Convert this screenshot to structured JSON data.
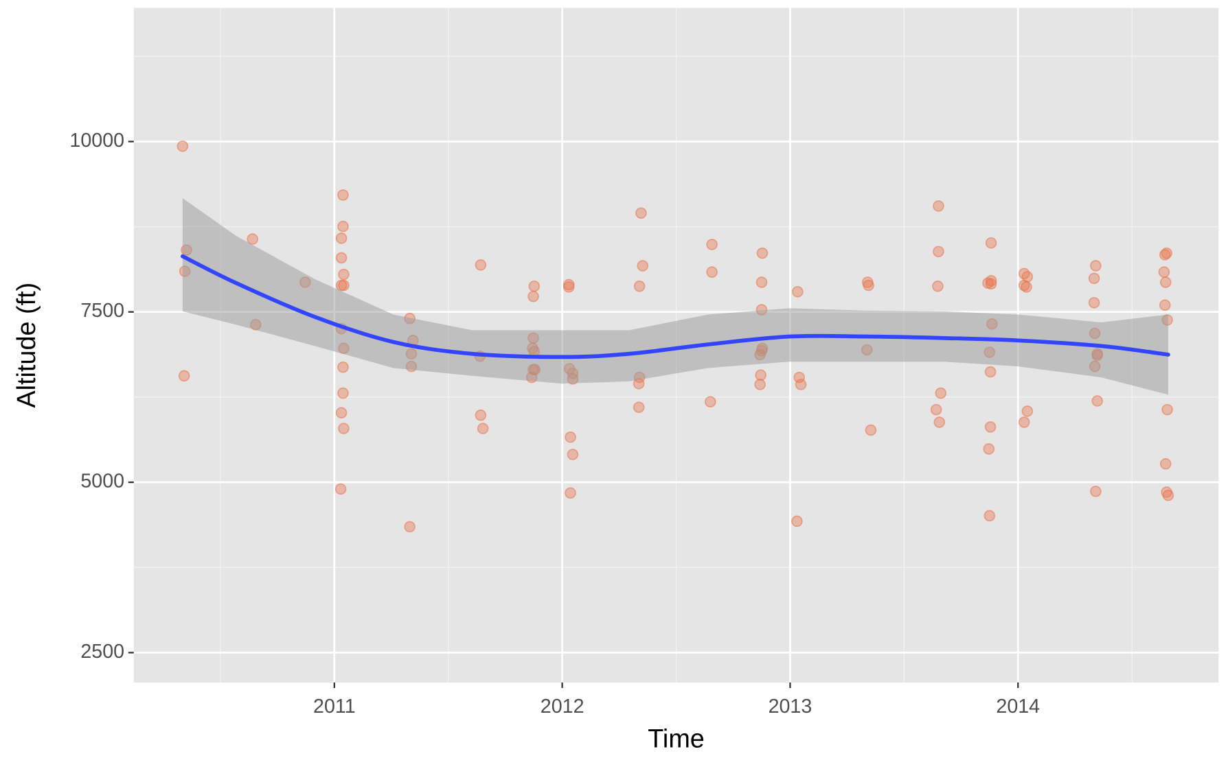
{
  "chart_data": {
    "type": "scatter",
    "x_label": "Time",
    "y_label": "Altitude (ft)",
    "xlim": [
      2010.12,
      2014.88
    ],
    "ylim": [
      2062,
      11961
    ],
    "xticks": [
      2011,
      2012,
      2013,
      2014
    ],
    "yticks": [
      2500,
      5000,
      7500,
      10000
    ],
    "xminorticks": [
      2010.5,
      2011.5,
      2012.5,
      2013.5,
      2014.5
    ],
    "yminorticks": [
      3750,
      6250,
      8750,
      11250
    ],
    "grid": true,
    "series": [
      {
        "color": "#e8734a",
        "x": [
          2010.334,
          2010.351,
          2010.344,
          2010.341,
          2010.641,
          2010.655,
          2010.872,
          2011.038,
          2011.038,
          2011.031,
          2011.031,
          2011.041,
          2011.031,
          2011.041,
          2011.031,
          2011.041,
          2011.038,
          2011.038,
          2011.031,
          2011.041,
          2011.028,
          2011.331,
          2011.345,
          2011.338,
          2011.338,
          2011.331,
          2011.642,
          2011.639,
          2011.642,
          2011.652,
          2011.877,
          2011.873,
          2011.873,
          2011.87,
          2011.877,
          2011.88,
          2011.873,
          2011.866,
          2012.029,
          2012.029,
          2012.032,
          2012.046,
          2012.046,
          2012.036,
          2012.046,
          2012.036,
          2012.346,
          2012.353,
          2012.339,
          2012.339,
          2012.336,
          2012.336,
          2012.657,
          2012.657,
          2012.65,
          2012.878,
          2012.875,
          2012.875,
          2012.878,
          2012.875,
          2012.868,
          2012.871,
          2012.868,
          2013.033,
          2013.04,
          2013.047,
          2013.03,
          2013.34,
          2013.344,
          2013.337,
          2013.354,
          2013.651,
          2013.651,
          2013.648,
          2013.661,
          2013.641,
          2013.655,
          2013.882,
          2013.882,
          2013.868,
          2013.882,
          2013.886,
          2013.875,
          2013.879,
          2013.879,
          2013.872,
          2013.875,
          2014.027,
          2014.041,
          2014.027,
          2014.037,
          2014.041,
          2014.027,
          2014.341,
          2014.334,
          2014.334,
          2014.337,
          2014.348,
          2014.348,
          2014.337,
          2014.348,
          2014.341,
          2014.652,
          2014.645,
          2014.641,
          2014.648,
          2014.645,
          2014.655,
          2014.655,
          2014.648,
          2014.652,
          2014.659
        ],
        "values": [
          9931,
          8408,
          8096,
          6562,
          8569,
          7312,
          7935,
          9215,
          8754,
          8581,
          8293,
          8050,
          7889,
          7889,
          7254,
          6966,
          6689,
          6308,
          6020,
          5789,
          4901,
          7404,
          7081,
          6885,
          6700,
          4347,
          8189,
          6850,
          5985,
          5789,
          7877,
          7727,
          7116,
          6966,
          6920,
          6654,
          6654,
          6539,
          7900,
          7866,
          6666,
          6597,
          6516,
          5662,
          5408,
          4843,
          8950,
          8177,
          7877,
          6539,
          6447,
          6100,
          8489,
          8085,
          6181,
          8362,
          7935,
          7531,
          6966,
          6931,
          6873,
          6573,
          6435,
          7796,
          6539,
          6435,
          4428,
          7935,
          7889,
          6943,
          5766,
          9054,
          8385,
          7877,
          6308,
          6066,
          5881,
          8512,
          7958,
          7923,
          7912,
          7323,
          6908,
          6620,
          5812,
          5489,
          4509,
          8062,
          8016,
          7889,
          7866,
          6043,
          5881,
          8177,
          7992,
          7635,
          7185,
          6885,
          6862,
          6700,
          6193,
          4866,
          8362,
          8339,
          8085,
          7935,
          7600,
          7381,
          6066,
          5270,
          4855,
          4808
        ]
      }
    ],
    "smooth": {
      "color": "#3344ff",
      "band_color": "#999999",
      "x": [
        2010.334,
        2010.569,
        2010.914,
        2011.259,
        2011.604,
        2011.998,
        2012.294,
        2012.64,
        2012.999,
        2013.33,
        2013.675,
        2014.0,
        2014.365,
        2014.659
      ],
      "values": [
        8316,
        7923,
        7427,
        7058,
        6885,
        6839,
        6885,
        7023,
        7139,
        7139,
        7116,
        7081,
        7000,
        6873
      ],
      "upper": [
        9169,
        8616,
        7981,
        7462,
        7231,
        7231,
        7231,
        7462,
        7554,
        7519,
        7508,
        7462,
        7346,
        7462
      ],
      "lower": [
        7508,
        7312,
        7000,
        6677,
        6562,
        6447,
        6481,
        6677,
        6770,
        6770,
        6770,
        6700,
        6539,
        6285
      ]
    }
  }
}
